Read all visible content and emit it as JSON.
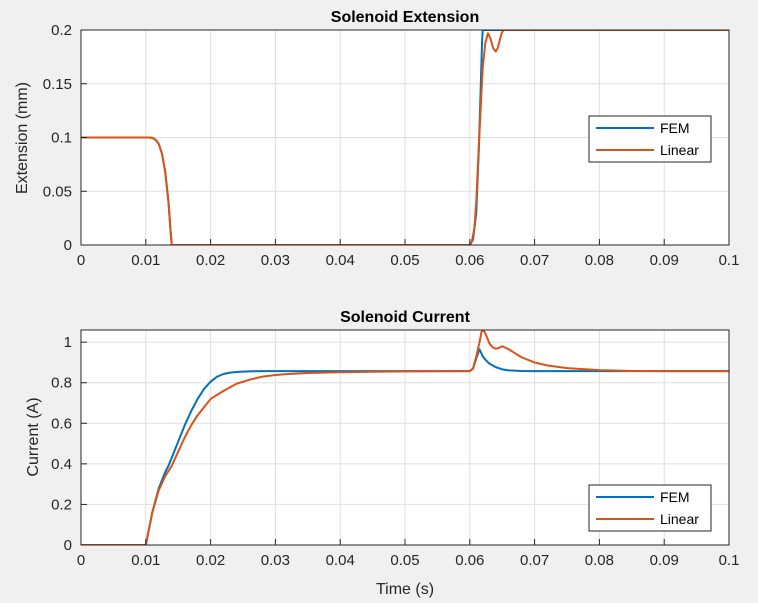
{
  "chart_data": [
    {
      "type": "line",
      "title": "Solenoid Extension",
      "xlabel": "",
      "ylabel": "Extension (mm)",
      "xlim": [
        0,
        0.1
      ],
      "ylim": [
        0,
        0.2
      ],
      "grid": true,
      "legend_position": "right",
      "xticks": [
        0,
        0.01,
        0.02,
        0.03,
        0.04,
        0.05,
        0.06,
        0.07,
        0.08,
        0.09,
        0.1
      ],
      "xtick_labels": [
        "0",
        "0.01",
        "0.02",
        "0.03",
        "0.04",
        "0.05",
        "0.06",
        "0.07",
        "0.08",
        "0.09",
        "0.1"
      ],
      "yticks": [
        0,
        0.05,
        0.1,
        0.15,
        0.2
      ],
      "ytick_labels": [
        "0",
        "0.05",
        "0.1",
        "0.15",
        "0.2"
      ],
      "series": [
        {
          "name": "FEM",
          "color": "#0072bd",
          "x": [
            0,
            0.0105,
            0.011,
            0.0115,
            0.012,
            0.0125,
            0.013,
            0.0135,
            0.0138,
            0.014,
            0.06,
            0.0605,
            0.061,
            0.0614,
            0.0617,
            0.0619,
            0.062,
            0.1
          ],
          "y": [
            0.1,
            0.1,
            0.0997,
            0.098,
            0.094,
            0.085,
            0.068,
            0.04,
            0.015,
            0,
            0,
            0.005,
            0.03,
            0.09,
            0.15,
            0.19,
            0.2,
            0.2
          ]
        },
        {
          "name": "Linear",
          "color": "#d95319",
          "x": [
            0,
            0.0105,
            0.011,
            0.0115,
            0.012,
            0.0125,
            0.013,
            0.0135,
            0.0138,
            0.014,
            0.06,
            0.0603,
            0.0607,
            0.061,
            0.0613,
            0.0617,
            0.062,
            0.0624,
            0.0628,
            0.0632,
            0.0636,
            0.064,
            0.0643,
            0.0646,
            0.0649,
            0.0652,
            0.1
          ],
          "y": [
            0.1,
            0.1,
            0.0997,
            0.098,
            0.094,
            0.085,
            0.068,
            0.04,
            0.015,
            0,
            0,
            0.003,
            0.015,
            0.04,
            0.08,
            0.13,
            0.165,
            0.188,
            0.197,
            0.192,
            0.183,
            0.18,
            0.183,
            0.19,
            0.197,
            0.2,
            0.2
          ]
        }
      ]
    },
    {
      "type": "line",
      "title": "Solenoid Current",
      "xlabel": "Time (s)",
      "ylabel": "Current (A)",
      "xlim": [
        0,
        0.1
      ],
      "ylim": [
        0,
        1.06
      ],
      "grid": true,
      "legend_position": "bottom-right",
      "xticks": [
        0,
        0.01,
        0.02,
        0.03,
        0.04,
        0.05,
        0.06,
        0.07,
        0.08,
        0.09,
        0.1
      ],
      "xtick_labels": [
        "0",
        "0.01",
        "0.02",
        "0.03",
        "0.04",
        "0.05",
        "0.06",
        "0.07",
        "0.08",
        "0.09",
        "0.1"
      ],
      "yticks": [
        0,
        0.2,
        0.4,
        0.6,
        0.8,
        1
      ],
      "ytick_labels": [
        "0",
        "0.2",
        "0.4",
        "0.6",
        "0.8",
        "1"
      ],
      "series": [
        {
          "name": "FEM",
          "color": "#0072bd",
          "x": [
            0,
            0.01,
            0.0105,
            0.011,
            0.012,
            0.013,
            0.0135,
            0.014,
            0.015,
            0.016,
            0.017,
            0.018,
            0.019,
            0.02,
            0.021,
            0.022,
            0.023,
            0.024,
            0.025,
            0.026,
            0.028,
            0.03,
            0.035,
            0.04,
            0.05,
            0.06,
            0.0605,
            0.061,
            0.0615,
            0.062,
            0.0625,
            0.063,
            0.064,
            0.065,
            0.066,
            0.068,
            0.07,
            0.075,
            0.08,
            0.1
          ],
          "y": [
            0,
            0,
            0.08,
            0.16,
            0.28,
            0.36,
            0.39,
            0.43,
            0.51,
            0.59,
            0.66,
            0.72,
            0.77,
            0.805,
            0.83,
            0.843,
            0.85,
            0.853,
            0.855,
            0.856,
            0.857,
            0.857,
            0.857,
            0.857,
            0.857,
            0.857,
            0.87,
            0.92,
            0.965,
            0.93,
            0.91,
            0.895,
            0.877,
            0.866,
            0.861,
            0.858,
            0.857,
            0.857,
            0.857,
            0.857
          ]
        },
        {
          "name": "Linear",
          "color": "#d95319",
          "x": [
            0,
            0.01,
            0.0105,
            0.011,
            0.012,
            0.013,
            0.014,
            0.015,
            0.016,
            0.017,
            0.018,
            0.019,
            0.02,
            0.022,
            0.024,
            0.026,
            0.028,
            0.03,
            0.032,
            0.035,
            0.04,
            0.045,
            0.05,
            0.06,
            0.0605,
            0.061,
            0.0615,
            0.0618,
            0.062,
            0.0623,
            0.0627,
            0.063,
            0.0635,
            0.064,
            0.0645,
            0.065,
            0.066,
            0.067,
            0.068,
            0.07,
            0.072,
            0.075,
            0.08,
            0.085,
            0.09,
            0.1
          ],
          "y": [
            0,
            0,
            0.08,
            0.16,
            0.27,
            0.34,
            0.39,
            0.46,
            0.53,
            0.59,
            0.64,
            0.68,
            0.72,
            0.76,
            0.795,
            0.815,
            0.83,
            0.838,
            0.843,
            0.848,
            0.852,
            0.854,
            0.856,
            0.857,
            0.87,
            0.93,
            1.0,
            1.05,
            1.06,
            1.05,
            1.02,
            0.995,
            0.975,
            0.968,
            0.972,
            0.98,
            0.965,
            0.945,
            0.925,
            0.9,
            0.885,
            0.872,
            0.862,
            0.858,
            0.857,
            0.857
          ]
        }
      ]
    }
  ]
}
